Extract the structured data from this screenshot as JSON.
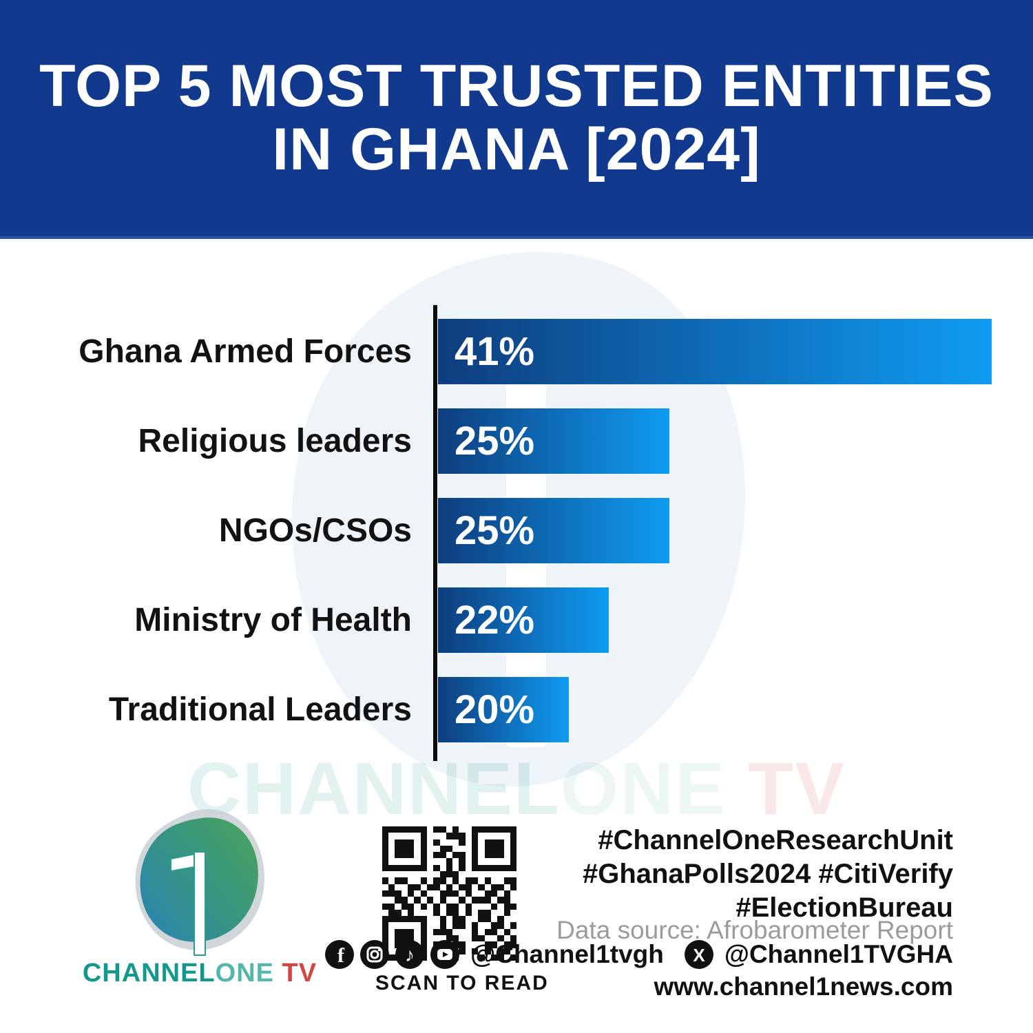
{
  "header": {
    "title_line1": "TOP 5 MOST TRUSTED ENTITIES",
    "title_line2": "IN GHANA [2024]",
    "bg_color": "#11398e",
    "text_color": "#ffffff"
  },
  "chart_data": {
    "type": "bar",
    "orientation": "horizontal",
    "title": "Top 5 most trusted entities in Ghana [2024]",
    "categories": [
      "Ghana Armed Forces",
      "Religious leaders",
      "NGOs/CSOs",
      "Ministry of Health",
      "Traditional Leaders"
    ],
    "values": [
      41,
      25,
      25,
      22,
      20
    ],
    "value_labels": [
      "41%",
      "25%",
      "25%",
      "22%",
      "20%"
    ],
    "xlabel": "",
    "ylabel": "",
    "grid": false,
    "legend": false,
    "bar_width_pct": [
      100,
      41.8,
      41.8,
      30.8,
      23.6
    ],
    "bar_gradient_start": "#0e3d7d",
    "bar_gradient_end": "#0f9cf3",
    "axis_color": "#0b0b0b",
    "label_color": "#121212",
    "value_text_color": "#ffffff"
  },
  "watermark": {
    "channel": "CHANNEL",
    "one": "ONE",
    "tv": " TV"
  },
  "logo": {
    "wordmark_channel": "CHANNEL",
    "wordmark_one": "ONE",
    "wordmark_tv": " TV",
    "teal": "#13998c",
    "green": "#48a161",
    "blue": "#2b85ad",
    "red": "#d24543"
  },
  "qr": {
    "caption": "SCAN TO READ",
    "pattern": [
      "111111101101001111111",
      "100000100011101000001",
      "101110101000101011101",
      "101110100110001011101",
      "101110101101101011101",
      "100000100010101000001",
      "111111101010101111111",
      "000000000111000000000",
      "101100101101011010011",
      "010011011010110101101",
      "111010100111010011010",
      "001101010100101110110",
      "110110101011010001011",
      "011010001011010110010",
      "111111100101100110100",
      "100000100101101001101",
      "101110101110001011010",
      "101110100011001100101",
      "101110101001100011011",
      "100000100110101010110",
      "111111101101000101101"
    ]
  },
  "footer": {
    "hashtags_line1": "#ChannelOneResearchUnit",
    "hashtags_line2": "#GhanaPolls2024 #CitiVerify",
    "hashtags_line3": "#ElectionBureau",
    "data_source": "Data source: Afrobarometer Report",
    "handle_main": "@Channel1tvgh",
    "handle_x": "@Channel1TVGHA",
    "website": "www.channel1news.com",
    "icons": [
      "facebook-icon",
      "instagram-icon",
      "tiktok-icon",
      "youtube-icon",
      "x-icon"
    ]
  }
}
